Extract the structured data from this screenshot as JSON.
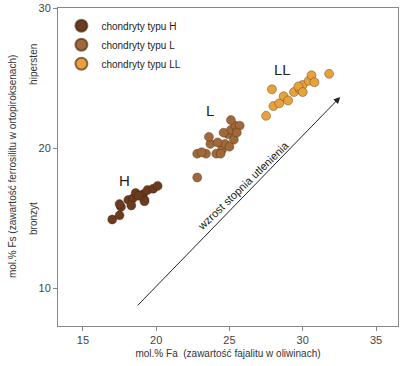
{
  "chart_data": {
    "type": "scatter",
    "x_label": "mol.% Fa  (zawartość fajalitu w oliwinach)",
    "y_label": "mol.% Fs (zawartość ferrosilitu w ortopiroksenach)",
    "xlim": [
      13.3,
      36.5
    ],
    "ylim": [
      7.3,
      30
    ],
    "xticks": [
      15,
      20,
      25,
      30,
      35
    ],
    "yticks": [
      10,
      20,
      30
    ],
    "grid": false,
    "legend": "top left",
    "series": [
      {
        "name": "chondryty typu H",
        "color": "#6b3a1f",
        "marker": "circle",
        "x": [
          17.0,
          17.5,
          17.6,
          17.5,
          18.1,
          18.4,
          18.6,
          19.1,
          19.2,
          19.4,
          19.8,
          20.1,
          19.2,
          18.3,
          18.8
        ],
        "values": [
          14.9,
          15.2,
          15.8,
          16.0,
          16.3,
          16.4,
          16.8,
          16.7,
          16.3,
          17.0,
          17.1,
          17.3,
          16.2,
          15.9,
          16.6
        ]
      },
      {
        "name": "chondryty typu L",
        "color": "#a0693a",
        "marker": "circle",
        "x": [
          22.8,
          22.8,
          23.4,
          23.7,
          23.6,
          24.1,
          24.5,
          24.7,
          24.9,
          25.1,
          25.4,
          25.7,
          25.3,
          24.6,
          24.2,
          23.1,
          25.1,
          25.5,
          24.4,
          25.0
        ],
        "values": [
          17.9,
          19.6,
          19.6,
          20.3,
          20.8,
          19.6,
          19.9,
          20.3,
          21.0,
          21.3,
          21.6,
          21.6,
          20.6,
          21.1,
          20.4,
          19.7,
          22.0,
          21.1,
          19.6,
          20.1
        ]
      },
      {
        "name": "chondryty typu LL",
        "color": "#e8a23c",
        "marker": "circle",
        "x": [
          27.5,
          28.0,
          27.9,
          28.4,
          28.7,
          29.0,
          29.4,
          29.8,
          30.0,
          30.4,
          30.6,
          30.8,
          31.8,
          29.7,
          30.0
        ],
        "values": [
          22.3,
          23.0,
          24.2,
          23.2,
          23.7,
          23.4,
          24.0,
          24.2,
          24.5,
          24.8,
          25.2,
          24.7,
          25.3,
          24.4,
          24.0
        ]
      }
    ],
    "annotations": [
      {
        "text": "H",
        "x": 17.85,
        "y": 17.7
      },
      {
        "text": "L",
        "x": 23.7,
        "y": 22.7
      },
      {
        "text": "LL",
        "x": 28.6,
        "y": 25.6
      },
      {
        "text": "wzrost stopnia utlenienia",
        "x": 25.9,
        "y": 17.3
      }
    ],
    "y_side_labels": [
      {
        "text": "hipersten",
        "y": 26
      },
      {
        "text": "bronzyt",
        "y": 15
      }
    ]
  }
}
